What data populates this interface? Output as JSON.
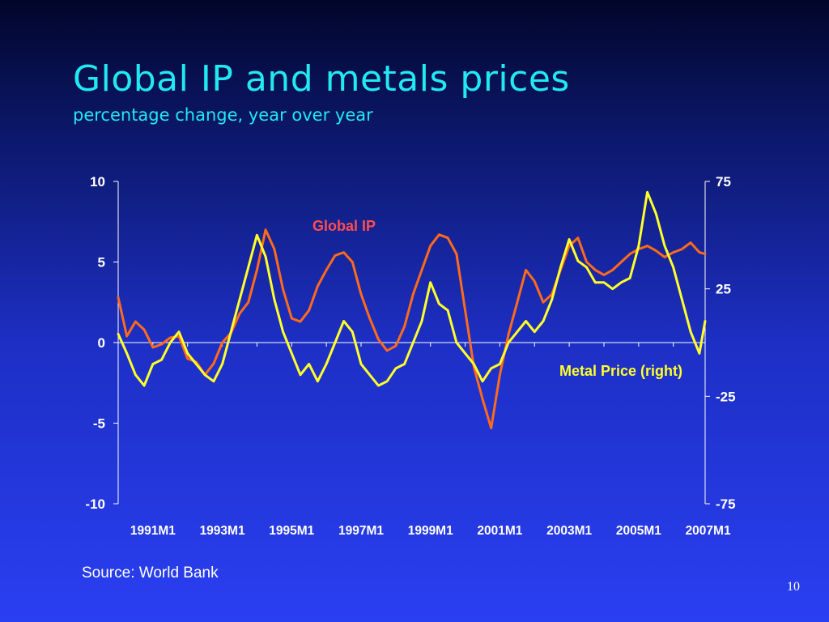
{
  "slide": {
    "title": "Global IP and metals prices",
    "subtitle": "percentage change, year over year",
    "source": "Source: World Bank",
    "page_number": "10"
  },
  "colors": {
    "ip_line": "#ff6a1a",
    "metal_line": "#ffff2a",
    "ip_label": "#ff4d4d",
    "metal_label": "#ffff2a",
    "axis": "#ffffff",
    "title": "#22e8f2"
  },
  "chart_data": {
    "type": "line",
    "title": "Global IP and metals prices",
    "subtitle": "percentage change, year over year",
    "x_start": "1991M1",
    "x_end": "2007M12",
    "x_tick_labels": [
      "1991M1",
      "1993M1",
      "1995M1",
      "1997M1",
      "1999M1",
      "2001M1",
      "2003M1",
      "2005M1",
      "2007M1"
    ],
    "y_left": {
      "min": -10,
      "max": 10,
      "ticks": [
        10,
        5,
        0,
        -5,
        -10
      ]
    },
    "y_right": {
      "min": -75,
      "max": 75,
      "ticks": [
        75,
        25,
        -25,
        -75
      ]
    },
    "grid": false,
    "series": [
      {
        "name": "Global IP",
        "axis": "left",
        "label_text": "Global IP",
        "points": [
          [
            "1991M1",
            2.8
          ],
          [
            "1991M4",
            0.4
          ],
          [
            "1991M7",
            1.3
          ],
          [
            "1991M10",
            0.8
          ],
          [
            "1992M1",
            -0.3
          ],
          [
            "1992M4",
            -0.1
          ],
          [
            "1992M7",
            0.3
          ],
          [
            "1992M10",
            0.4
          ],
          [
            "1993M1",
            -1.0
          ],
          [
            "1993M4",
            -1.2
          ],
          [
            "1993M7",
            -2.0
          ],
          [
            "1993M10",
            -1.3
          ],
          [
            "1994M1",
            0.0
          ],
          [
            "1994M4",
            0.6
          ],
          [
            "1994M7",
            1.8
          ],
          [
            "1994M10",
            2.5
          ],
          [
            "1995M1",
            4.5
          ],
          [
            "1995M4",
            7.0
          ],
          [
            "1995M7",
            5.8
          ],
          [
            "1995M10",
            3.3
          ],
          [
            "1996M1",
            1.5
          ],
          [
            "1996M4",
            1.3
          ],
          [
            "1996M7",
            2.0
          ],
          [
            "1996M10",
            3.5
          ],
          [
            "1997M1",
            4.5
          ],
          [
            "1997M4",
            5.4
          ],
          [
            "1997M7",
            5.6
          ],
          [
            "1997M10",
            5.0
          ],
          [
            "1998M1",
            3.0
          ],
          [
            "1998M4",
            1.5
          ],
          [
            "1998M7",
            0.2
          ],
          [
            "1998M10",
            -0.5
          ],
          [
            "1999M1",
            -0.2
          ],
          [
            "1999M4",
            1.0
          ],
          [
            "1999M7",
            3.0
          ],
          [
            "1999M10",
            4.5
          ],
          [
            "2000M1",
            6.0
          ],
          [
            "2000M4",
            6.7
          ],
          [
            "2000M7",
            6.5
          ],
          [
            "2000M10",
            5.5
          ],
          [
            "2001M1",
            2.0
          ],
          [
            "2001M4",
            -1.5
          ],
          [
            "2001M7",
            -3.5
          ],
          [
            "2001M10",
            -5.3
          ],
          [
            "2002M1",
            -2.0
          ],
          [
            "2002M4",
            0.5
          ],
          [
            "2002M7",
            2.5
          ],
          [
            "2002M10",
            4.5
          ],
          [
            "2003M1",
            3.8
          ],
          [
            "2003M4",
            2.5
          ],
          [
            "2003M7",
            3.0
          ],
          [
            "2003M10",
            4.5
          ],
          [
            "2004M1",
            6.0
          ],
          [
            "2004M4",
            6.5
          ],
          [
            "2004M7",
            5.0
          ],
          [
            "2004M10",
            4.5
          ],
          [
            "2005M1",
            4.2
          ],
          [
            "2005M4",
            4.5
          ],
          [
            "2005M7",
            5.0
          ],
          [
            "2005M10",
            5.5
          ],
          [
            "2006M1",
            5.8
          ],
          [
            "2006M4",
            6.0
          ],
          [
            "2006M7",
            5.7
          ],
          [
            "2006M10",
            5.3
          ],
          [
            "2007M1",
            5.6
          ],
          [
            "2007M4",
            5.8
          ],
          [
            "2007M7",
            6.2
          ],
          [
            "2007M10",
            5.6
          ],
          [
            "2007M12",
            5.5
          ]
        ]
      },
      {
        "name": "Metal Price (right)",
        "axis": "right",
        "label_text": "Metal Price (right)",
        "points": [
          [
            "1991M1",
            4
          ],
          [
            "1991M4",
            -5
          ],
          [
            "1991M7",
            -15
          ],
          [
            "1991M10",
            -20
          ],
          [
            "1992M1",
            -10
          ],
          [
            "1992M4",
            -8
          ],
          [
            "1992M7",
            0
          ],
          [
            "1992M10",
            5
          ],
          [
            "1993M1",
            -5
          ],
          [
            "1993M4",
            -10
          ],
          [
            "1993M7",
            -15
          ],
          [
            "1993M10",
            -18
          ],
          [
            "1994M1",
            -10
          ],
          [
            "1994M4",
            5
          ],
          [
            "1994M7",
            20
          ],
          [
            "1994M10",
            35
          ],
          [
            "1995M1",
            50
          ],
          [
            "1995M4",
            40
          ],
          [
            "1995M7",
            20
          ],
          [
            "1995M10",
            5
          ],
          [
            "1996M1",
            -5
          ],
          [
            "1996M4",
            -15
          ],
          [
            "1996M7",
            -10
          ],
          [
            "1996M10",
            -18
          ],
          [
            "1997M1",
            -10
          ],
          [
            "1997M4",
            0
          ],
          [
            "1997M7",
            10
          ],
          [
            "1997M10",
            5
          ],
          [
            "1998M1",
            -10
          ],
          [
            "1998M4",
            -15
          ],
          [
            "1998M7",
            -20
          ],
          [
            "1998M10",
            -18
          ],
          [
            "1999M1",
            -12
          ],
          [
            "1999M4",
            -10
          ],
          [
            "1999M7",
            0
          ],
          [
            "1999M10",
            10
          ],
          [
            "2000M1",
            28
          ],
          [
            "2000M4",
            18
          ],
          [
            "2000M7",
            15
          ],
          [
            "2000M10",
            0
          ],
          [
            "2001M1",
            -5
          ],
          [
            "2001M4",
            -10
          ],
          [
            "2001M7",
            -18
          ],
          [
            "2001M10",
            -12
          ],
          [
            "2002M1",
            -10
          ],
          [
            "2002M4",
            0
          ],
          [
            "2002M7",
            5
          ],
          [
            "2002M10",
            10
          ],
          [
            "2003M1",
            5
          ],
          [
            "2003M4",
            10
          ],
          [
            "2003M7",
            20
          ],
          [
            "2003M10",
            35
          ],
          [
            "2004M1",
            48
          ],
          [
            "2004M4",
            38
          ],
          [
            "2004M7",
            35
          ],
          [
            "2004M10",
            28
          ],
          [
            "2005M1",
            28
          ],
          [
            "2005M4",
            25
          ],
          [
            "2005M7",
            28
          ],
          [
            "2005M10",
            30
          ],
          [
            "2006M1",
            45
          ],
          [
            "2006M4",
            70
          ],
          [
            "2006M7",
            60
          ],
          [
            "2006M10",
            45
          ],
          [
            "2007M1",
            35
          ],
          [
            "2007M4",
            20
          ],
          [
            "2007M7",
            5
          ],
          [
            "2007M10",
            -5
          ],
          [
            "2007M12",
            10
          ]
        ]
      }
    ]
  }
}
